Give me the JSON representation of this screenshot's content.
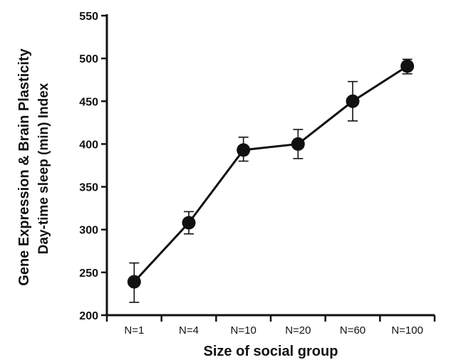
{
  "chart_data": {
    "type": "line",
    "title": "",
    "xlabel": "Size of social group",
    "ylabel_lines": [
      "Gene Expression & Brain Plasticity",
      "Day-time sleep (min) Index"
    ],
    "categories": [
      "N=1",
      "N=4",
      "N=10",
      "N=20",
      "N=60",
      "N=100"
    ],
    "ylim": [
      200,
      550
    ],
    "yticks": [
      200,
      250,
      300,
      350,
      400,
      450,
      500,
      550
    ],
    "series": [
      {
        "values": [
          239,
          308,
          393,
          400,
          450,
          491
        ],
        "error_low": [
          215,
          295,
          380,
          383,
          427,
          482
        ],
        "error_high": [
          261,
          321,
          408,
          417,
          473,
          499
        ]
      }
    ],
    "grid": false,
    "legend": "none",
    "color": "#111111"
  }
}
